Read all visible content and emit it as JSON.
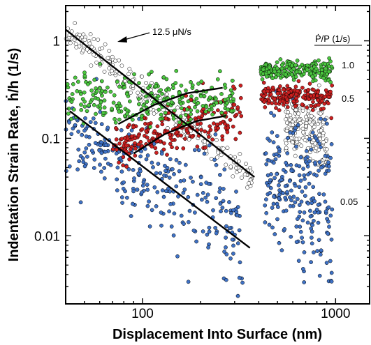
{
  "chart_data": {
    "type": "scatter",
    "title": "",
    "xlabel": "Displacement Into Surface (nm)",
    "ylabel": "Indentation Strain Rate, ḣ/h (1/s)",
    "xscale": "log",
    "yscale": "log",
    "xlim": [
      40,
      1500
    ],
    "ylim": [
      0.002,
      2.3
    ],
    "x_ticks": [
      100,
      1000
    ],
    "x_tick_labels": [
      "100",
      "1000"
    ],
    "y_ticks": [
      0.01,
      0.1,
      1
    ],
    "y_tick_labels": [
      "0.01",
      "0.1",
      "1"
    ],
    "grid": false,
    "annotation": "12.5 μN/s",
    "legend_title": "Ṗ/P (1/s)",
    "series": [
      {
        "label": "12.5 μN/s",
        "color": "#ffffff",
        "segments": [
          {
            "x_range": [
              40,
              370
            ],
            "y_start": 1.3,
            "y_end": 0.04,
            "spread": 0.12
          },
          {
            "x_range": [
              550,
              900
            ],
            "y_start": 0.15,
            "y_end": 0.1,
            "spread": 0.25
          }
        ],
        "fit_line": {
          "x": [
            40,
            380
          ],
          "y": [
            1.3,
            0.04
          ]
        }
      },
      {
        "label": "1.0",
        "color": "#4bc63f",
        "segments": [
          {
            "x_range": [
              40,
              300
            ],
            "y_start": 0.26,
            "y_end": 0.25,
            "spread": 0.2
          },
          {
            "x_range": [
              410,
              960
            ],
            "y_start": 0.5,
            "y_end": 0.5,
            "spread": 0.07
          }
        ],
        "fit_line": {
          "x": [
            75,
            115,
            170,
            260
          ],
          "y": [
            0.14,
            0.22,
            0.29,
            0.33
          ]
        }
      },
      {
        "label": "0.5",
        "color": "#cc2020",
        "segments": [
          {
            "x_range": [
              70,
              330
            ],
            "y_start": 0.08,
            "y_end": 0.18,
            "spread": 0.2
          },
          {
            "x_range": [
              410,
              960
            ],
            "y_start": 0.28,
            "y_end": 0.25,
            "spread": 0.1
          }
        ],
        "fit_line": {
          "x": [
            90,
            130,
            190,
            270
          ],
          "y": [
            0.07,
            0.11,
            0.15,
            0.17
          ]
        }
      },
      {
        "label": "0.05",
        "color": "#3f72c6",
        "segments": [
          {
            "x_range": [
              40,
              330
            ],
            "y_start": 0.12,
            "y_end": 0.012,
            "spread": 0.35
          },
          {
            "x_range": [
              430,
              960
            ],
            "y_start": 0.04,
            "y_end": 0.02,
            "spread": 0.5
          }
        ],
        "fit_line": {
          "x": [
            42,
            360
          ],
          "y": [
            0.19,
            0.0075
          ]
        }
      }
    ]
  }
}
